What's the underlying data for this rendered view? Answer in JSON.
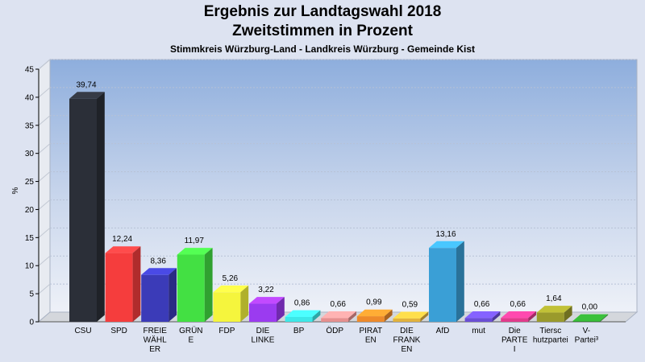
{
  "title": "Ergebnis zur Landtagswahl 2018",
  "subtitle": "Zweitstimmen in Prozent",
  "subsubtitle": "Stimmkreis Würzburg-Land - Landkreis Würzburg - Gemeinde Kist",
  "chart_data": {
    "type": "bar",
    "ylabel": "%",
    "ylim": [
      0,
      45
    ],
    "yticks": [
      0,
      5,
      10,
      15,
      20,
      25,
      30,
      35,
      40,
      45
    ],
    "grid": true,
    "categories": [
      [
        "CSU"
      ],
      [
        "SPD"
      ],
      [
        "FREIE",
        "WÄHL",
        "ER"
      ],
      [
        "GRÜN",
        "E"
      ],
      [
        "FDP"
      ],
      [
        "DIE",
        "LINKE"
      ],
      [
        "BP"
      ],
      [
        "ÖDP"
      ],
      [
        "PIRAT",
        "EN"
      ],
      [
        "DIE",
        "FRANK",
        "EN"
      ],
      [
        "AfD"
      ],
      [
        "mut"
      ],
      [
        "Die",
        "PARTE",
        "I"
      ],
      [
        "Tiersc",
        "hutzpartei"
      ],
      [
        "V-",
        "Partei³"
      ]
    ],
    "values": [
      39.74,
      12.24,
      8.36,
      11.97,
      5.26,
      3.22,
      0.86,
      0.66,
      0.99,
      0.59,
      13.16,
      0.66,
      0.66,
      1.64,
      0.0
    ],
    "value_labels": [
      "39,74",
      "12,24",
      "8,36",
      "11,97",
      "5,26",
      "3,22",
      "0,86",
      "0,66",
      "0,99",
      "0,59",
      "13,16",
      "0,66",
      "0,66",
      "1,64",
      "0,00"
    ],
    "colors": [
      "#2b2f38",
      "#f53d3d",
      "#3b3bb8",
      "#43e043",
      "#f5f53d",
      "#9b3bf0",
      "#3de8e8",
      "#e68f8f",
      "#ee8a2a",
      "#e2b23c",
      "#3a9fd6",
      "#6a4ed6",
      "#e23a8c",
      "#9a9a2c",
      "#2f9a2f"
    ]
  }
}
